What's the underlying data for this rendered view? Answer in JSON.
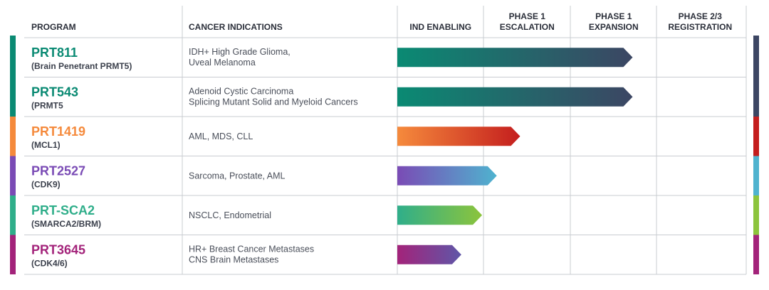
{
  "chart_data": {
    "type": "table",
    "title": "",
    "headers": {
      "program": "PROGRAM",
      "indications": "CANCER INDICATIONS",
      "phases": [
        [
          "IND ENABLING"
        ],
        [
          "PHASE 1",
          "ESCALATION"
        ],
        [
          "PHASE 1",
          "EXPANSION"
        ],
        [
          "PHASE 2/3",
          "REGISTRATION"
        ]
      ]
    },
    "programs": [
      {
        "name": "PRT811",
        "target": "(Brain Penetrant PRMT5)",
        "indications": [
          "IDH+ High Grade Glioma,",
          "Uveal Melanoma"
        ],
        "progress": 2.72,
        "color_start": "#0a8a73",
        "color_end": "#3c4663",
        "name_color": "#0a8a73",
        "side_color": "#0a8a73"
      },
      {
        "name": "PRT543",
        "target": "(PRMT5",
        "indications": [
          "Adenoid Cystic Carcinoma",
          "Splicing Mutant Solid and Myeloid Cancers"
        ],
        "progress": 2.72,
        "color_start": "#0a8a73",
        "color_end": "#3c4663",
        "name_color": "#0a8a73",
        "side_color": "#0a8a73"
      },
      {
        "name": "PRT1419",
        "target": "(MCL1)",
        "indications": [
          "AML, MDS, CLL"
        ],
        "progress": 1.42,
        "color_start": "#f58a3c",
        "color_end": "#c41e1e",
        "name_color": "#f58a3c",
        "side_color": "#f58a3c"
      },
      {
        "name": "PRT2527",
        "target": "(CDK9)",
        "indications": [
          "Sarcoma, Prostate, AML"
        ],
        "progress": 1.15,
        "color_start": "#7a4bb5",
        "color_end": "#4fb3cf",
        "name_color": "#7a4bb5",
        "side_color": "#7a4bb5"
      },
      {
        "name": "PRT-SCA2",
        "target": "(SMARCA2/BRM)",
        "indications": [
          "NSCLC, Endometrial"
        ],
        "progress": 0.98,
        "color_start": "#2fae8a",
        "color_end": "#8cc43c",
        "name_color": "#2fae8a",
        "side_color": "#2fae8a"
      },
      {
        "name": "PRT3645",
        "target": "(CDK4/6)",
        "indications": [
          "HR+ Breast Cancer Metastases",
          "CNS Brain Metastases"
        ],
        "progress": 0.74,
        "color_start": "#a3237a",
        "color_end": "#5f57a8",
        "name_color": "#a3237a",
        "side_color": "#a3237a"
      }
    ],
    "right_bar_colors": [
      "#3c4663",
      "#3c4663",
      "#c41e1e",
      "#4fb3cf",
      "#8cc43c",
      "#a3237a"
    ]
  }
}
